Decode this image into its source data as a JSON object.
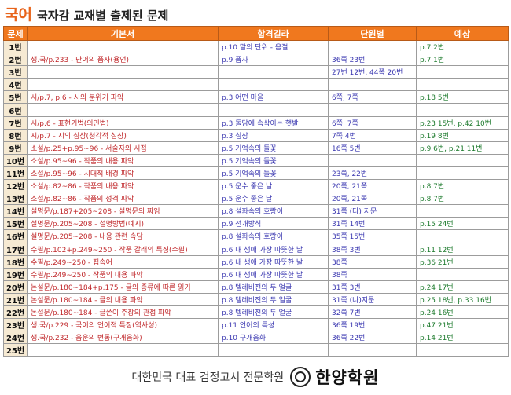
{
  "header": {
    "title_main": "국어",
    "title_sub": "국자감 교재별 출제된 문제"
  },
  "table": {
    "columns": [
      "문제",
      "기본서",
      "합격길라",
      "단원별",
      "예상"
    ],
    "rows": [
      {
        "no": "1번",
        "book": "",
        "path": "p.10 말의 단위 - 음절",
        "unit": "",
        "pred": "p.7 2번"
      },
      {
        "no": "2번",
        "book": "생.국/p.233 - 단어의 품사(용언)",
        "path": "p.9 품사",
        "unit": "36쪽 23번",
        "pred": "p.7 1번"
      },
      {
        "no": "3번",
        "book": "",
        "path": "",
        "unit": "27번 12번, 44쪽 20번",
        "pred": ""
      },
      {
        "no": "4번",
        "book": "",
        "path": "",
        "unit": "",
        "pred": ""
      },
      {
        "no": "5번",
        "book": "시/p.7, p.6 - 시의 분위기 파악",
        "path": "p.3 어떤 마을",
        "unit": "6쪽, 7쪽",
        "pred": "p.18 5번"
      },
      {
        "no": "6번",
        "book": "",
        "path": "",
        "unit": "",
        "pred": ""
      },
      {
        "no": "7번",
        "book": "시/p.6 - 표현기법(의인법)",
        "path": "p.3 돌담에 속삭이는 햇발",
        "unit": "6쪽, 7쪽",
        "pred": "p.23 15번, p.42 10번"
      },
      {
        "no": "8번",
        "book": "시/p.7 - 시의 심상(청각적 심상)",
        "path": "p.3 심상",
        "unit": "7쪽 4번",
        "pred": "p.19 8번"
      },
      {
        "no": "9번",
        "book": "소설/p.25+p.95~96 - 서술자와 시점",
        "path": "p.5 기억속의 들꽃",
        "unit": "16쪽 5번",
        "pred": "p.9 6번, p.21 11번"
      },
      {
        "no": "10번",
        "book": "소설/p.95~96 - 작품의 내용 파악",
        "path": "p.5 기억속의 들꽃",
        "unit": "",
        "pred": ""
      },
      {
        "no": "11번",
        "book": "소설/p.95~96 - 시대적 배경 파악",
        "path": "p.5 기억속의 들꽃",
        "unit": "23쪽, 22번",
        "pred": ""
      },
      {
        "no": "12번",
        "book": "소설/p.82~86 - 작품의 내용 파악",
        "path": "p.5 운수 좋은 날",
        "unit": "20쪽, 21쪽",
        "pred": "p.8 7번"
      },
      {
        "no": "13번",
        "book": "소설/p.82~86 - 작품의 성격 파악",
        "path": "p.5 운수 좋은 날",
        "unit": "20쪽, 21쪽",
        "pred": "p.8 7번"
      },
      {
        "no": "14번",
        "book": "설명문/p.187+205~208 - 설명문의 짜임",
        "path": "p.8 설화속의 호랑이",
        "unit": "31쪽 (다) 지문",
        "pred": ""
      },
      {
        "no": "15번",
        "book": "설명문/p.205~208 - 설명방법(예시)",
        "path": "p.9 전개방식",
        "unit": "31쪽 14번",
        "pred": "p.15 24번"
      },
      {
        "no": "16번",
        "book": "설명문/p.205~208 - 내용 관련 속담",
        "path": "p.8 설화속의 호랑이",
        "unit": "35쪽 15번",
        "pred": ""
      },
      {
        "no": "17번",
        "book": "수필/p.102+p.249~250 - 작품 갈래의 특징(수필)",
        "path": "p.6 내 생애 가장 따뜻한 날",
        "unit": "38쪽 3번",
        "pred": "p.11 12번"
      },
      {
        "no": "18번",
        "book": "수필/p.249~250 - 집속어",
        "path": "p.6 내 생애 가장 따뜻한 날",
        "unit": "38쪽",
        "pred": "p.36 21번"
      },
      {
        "no": "19번",
        "book": "수필/p.249~250 - 작품의 내용 파악",
        "path": "p.6 내 생애 가장 따뜻한 날",
        "unit": "38쪽",
        "pred": ""
      },
      {
        "no": "20번",
        "book": "논설문/p.180~184+p.175 - 글의 종류에 따른 읽기",
        "path": "p.8 텔레비전의 두 얼굴",
        "unit": "31쪽 3번",
        "pred": "p.24 17번"
      },
      {
        "no": "21번",
        "book": "논설문/p.180~184 - 글의 내용 파악",
        "path": "p.8 텔레비전의 두 얼굴",
        "unit": "31쪽 (나)지문",
        "pred": "p.25 18번, p.33 16번"
      },
      {
        "no": "22번",
        "book": "논설문/p.180~184 - 글쓴이 주장의 관점 파악",
        "path": "p.8 텔레비전의 두 얼굴",
        "unit": "32쪽 7번",
        "pred": "p.24 16번"
      },
      {
        "no": "23번",
        "book": "생.국/p.229 - 국어의 언어적 특징(역사성)",
        "path": "p.11 언어의 특성",
        "unit": "36쪽 19번",
        "pred": "p.47 21번"
      },
      {
        "no": "24번",
        "book": "생.국/p.232 - 음운의 변동(구개음화)",
        "path": "p.10 구개음화",
        "unit": "36쪽 22번",
        "pred": "p.14 21번"
      },
      {
        "no": "25번",
        "book": "",
        "path": "",
        "unit": "",
        "pred": ""
      }
    ]
  },
  "footer": {
    "tagline": "대한민국 대표 검정고시 전문학원",
    "brand": "한양학원"
  }
}
